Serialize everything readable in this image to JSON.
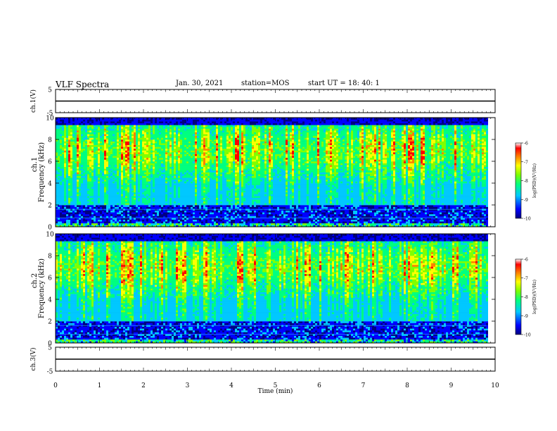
{
  "header": {
    "title": "VLF Spectra",
    "date": "Jan. 30, 2021",
    "station": "station=MOS",
    "start": "start  UT =   18: 40: 1"
  },
  "chart_data": [
    {
      "type": "line",
      "ylabel": "ch.1(V)",
      "ylim": [
        -5,
        5
      ],
      "yticks": [
        "5",
        "-5"
      ],
      "x": [
        0,
        10
      ],
      "values": [
        0,
        0
      ]
    },
    {
      "type": "heatmap",
      "ylabel": "ch.1 Frequency (kHz)",
      "ylabel_top": "ch.1",
      "ylabel_bottom": "Frequency (kHz)",
      "ylim": [
        0,
        10
      ],
      "yticks": [
        "0",
        "2",
        "4",
        "6",
        "8",
        "10"
      ],
      "xlim": [
        0,
        10
      ],
      "data_end_min": 9.8,
      "colorbar": {
        "label": "log(PSD)(V²/Hz)",
        "range": [
          -10,
          -6
        ],
        "ticks": [
          "-6",
          "-7",
          "-8",
          "-9",
          "-10"
        ],
        "colormap": [
          "#000080",
          "#0000ff",
          "#00c8ff",
          "#00ff80",
          "#80ff00",
          "#ffff00",
          "#ff8000",
          "#ff0000",
          "#ffffff"
        ]
      }
    },
    {
      "type": "heatmap",
      "ylabel": "ch.2 Frequency (kHz)",
      "ylabel_top": "ch.2",
      "ylabel_bottom": "Frequency (kHz)",
      "ylim": [
        0,
        10
      ],
      "yticks": [
        "0",
        "2",
        "4",
        "6",
        "8",
        "10"
      ],
      "xlim": [
        0,
        10
      ],
      "data_end_min": 9.8,
      "colorbar": {
        "label": "log(PSD)(V²/Hz)",
        "range": [
          -10,
          -6
        ],
        "ticks": [
          "-6",
          "-7",
          "-8",
          "-9",
          "-10"
        ],
        "colormap": [
          "#000080",
          "#0000ff",
          "#00c8ff",
          "#00ff80",
          "#80ff00",
          "#ffff00",
          "#ff8000",
          "#ff0000",
          "#ffffff"
        ]
      }
    },
    {
      "type": "line",
      "ylabel": "ch.3(V)",
      "ylim": [
        -5,
        5
      ],
      "yticks": [
        "5",
        "-5"
      ],
      "x": [
        0,
        10
      ],
      "values": [
        0,
        0
      ]
    }
  ],
  "xaxis": {
    "label": "Time (min)",
    "ticks": [
      "0",
      "1",
      "2",
      "3",
      "4",
      "5",
      "6",
      "7",
      "8",
      "9",
      "10"
    ]
  }
}
